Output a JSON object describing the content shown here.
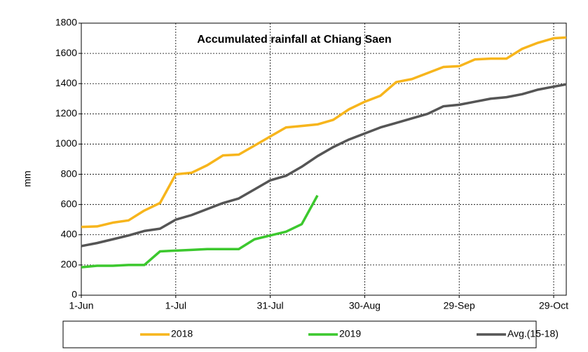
{
  "chart_data": {
    "type": "line",
    "title": "Accumulated rainfall at Chiang Saen",
    "ylabel": "mm",
    "x": [
      0,
      5,
      10,
      15,
      20,
      25,
      30,
      35,
      40,
      45,
      50,
      55,
      60,
      65,
      70,
      75,
      80,
      85,
      90,
      95,
      100,
      105,
      110,
      115,
      120,
      125,
      130,
      135,
      140,
      145,
      150,
      154
    ],
    "xlim": [
      0,
      154
    ],
    "xticks": [
      {
        "value": 0,
        "label": "1-Jun"
      },
      {
        "value": 30,
        "label": "1-Jul"
      },
      {
        "value": 60,
        "label": "31-Jul"
      },
      {
        "value": 90,
        "label": "30-Aug"
      },
      {
        "value": 120,
        "label": "29-Sep"
      },
      {
        "value": 150,
        "label": "29-Oct"
      }
    ],
    "ylim": [
      0,
      1800
    ],
    "yticks": [
      0,
      200,
      400,
      600,
      800,
      1000,
      1200,
      1400,
      1600,
      1800
    ],
    "grid": true,
    "legend": "bottom",
    "series": [
      {
        "name": "2018",
        "color": "#f7b51c",
        "values": [
          452,
          455,
          480,
          495,
          560,
          610,
          800,
          810,
          860,
          925,
          930,
          990,
          1050,
          1110,
          1120,
          1130,
          1160,
          1230,
          1280,
          1320,
          1410,
          1430,
          1470,
          1510,
          1515,
          1560,
          1565,
          1565,
          1630,
          1670,
          1700,
          1705
        ]
      },
      {
        "name": "2019",
        "color": "#3cc82e",
        "values": [
          185,
          195,
          195,
          200,
          200,
          290,
          295,
          300,
          305,
          305,
          305,
          370,
          395,
          420,
          470,
          660,
          null,
          null,
          null,
          null,
          null,
          null,
          null,
          null,
          null,
          null,
          null,
          null,
          null,
          null,
          null,
          null
        ]
      },
      {
        "name": "Avg.(15-18)",
        "color": "#555555",
        "values": [
          325,
          345,
          370,
          395,
          425,
          440,
          500,
          530,
          570,
          610,
          640,
          700,
          760,
          790,
          850,
          920,
          980,
          1030,
          1070,
          1110,
          1140,
          1170,
          1200,
          1250,
          1260,
          1280,
          1300,
          1310,
          1330,
          1360,
          1380,
          1395
        ]
      }
    ]
  }
}
